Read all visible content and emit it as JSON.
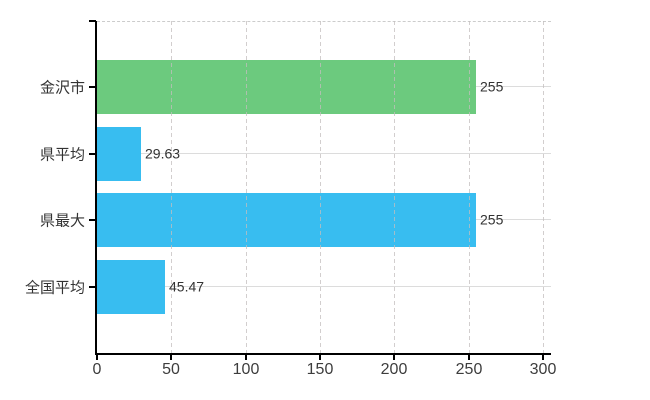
{
  "chart_data": {
    "type": "bar",
    "orientation": "horizontal",
    "title": "",
    "xlabel": "",
    "ylabel": "",
    "categories": [
      "金沢市",
      "県平均",
      "県最大",
      "全国平均"
    ],
    "values": [
      255,
      29.63,
      255,
      45.47
    ],
    "value_labels": [
      "255",
      "29.63",
      "255",
      "45.47"
    ],
    "bar_colors": [
      "#6cca7e",
      "#38bdf0",
      "#38bdf0",
      "#38bdf0"
    ],
    "xlim": [
      0,
      300
    ],
    "x_ticks": [
      0,
      50,
      100,
      150,
      200,
      250,
      300
    ],
    "grid": true,
    "legend_position": "none"
  },
  "colors": {
    "background": "#ffffff",
    "axis": "#000000",
    "horizontal_gridline": "#dcdcdc",
    "vertical_gridline": "#c3bebe",
    "top_border": "#cccccc",
    "category_label_text": "#333333",
    "value_label_text": "#333333",
    "tick_label_text": "#3d3d3d",
    "green_bar": "#6cca7e",
    "blue_bar": "#38bdf0"
  }
}
